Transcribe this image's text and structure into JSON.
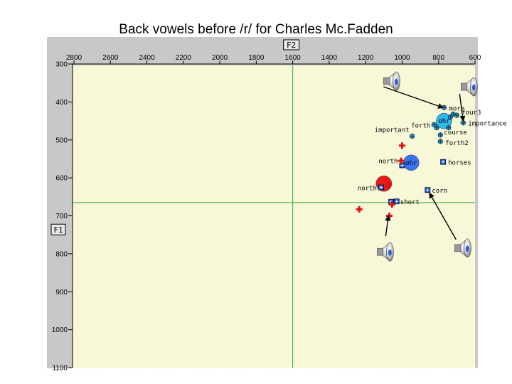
{
  "slide_title": "Back vowels before /r/ for Charles Mc.Fadden",
  "colors": {
    "panel_bg": "#c8c8c8",
    "plot_bg": "#f8f8d8",
    "gridline": "#33aa33",
    "blue_marker": "#1a4fd6",
    "cyan_marker": "#29b6e6",
    "red_marker": "#dd1111",
    "red_circle": "#e81a1a",
    "blue_circle": "#3a73f0",
    "cyan_circle": "#2bb8ea"
  },
  "chart_data": {
    "type": "scatter",
    "title": "Back vowels before /r/ for Charles Mc.Fadden",
    "xlabel": "F2",
    "ylabel": "F1",
    "x_reversed": true,
    "y_reversed": true,
    "xlim": [
      2800,
      600
    ],
    "ylim": [
      300,
      1100
    ],
    "x_ticks": [
      "2800",
      "2600",
      "2400",
      "2200",
      "2000",
      "1800",
      "1600",
      "1400",
      "1200",
      "1000",
      "800",
      "600"
    ],
    "y_ticks": [
      "300",
      "400",
      "500",
      "600",
      "700",
      "800",
      "900",
      "1000",
      "1100"
    ],
    "x_tick_values": [
      2800,
      2600,
      2400,
      2200,
      2000,
      1800,
      1600,
      1400,
      1200,
      1000,
      800,
      600
    ],
    "y_tick_values": [
      300,
      400,
      500,
      600,
      700,
      800,
      900,
      1000,
      1100
    ],
    "reference_lines": {
      "x": 1600,
      "y": 665
    },
    "labeled_points": [
      {
        "label": "more",
        "x": 770,
        "y": 415,
        "marker": "circle-plus",
        "series": "blue"
      },
      {
        "label": "four3",
        "x": 700,
        "y": 435,
        "marker": "circle-plus",
        "series": "blue"
      },
      {
        "label": "importance",
        "x": 665,
        "y": 455,
        "marker": "circle-plus",
        "series": "blue"
      },
      {
        "label": "forth",
        "x": 825,
        "y": 460,
        "marker": "circle-plus",
        "series": "blue"
      },
      {
        "label": "important",
        "x": 945,
        "y": 490,
        "marker": "circle-plus",
        "series": "blue"
      },
      {
        "label": "course",
        "x": 790,
        "y": 487,
        "marker": "circle-plus",
        "series": "blue"
      },
      {
        "label": "forth2",
        "x": 790,
        "y": 504,
        "marker": "circle-plus",
        "series": "blue"
      },
      {
        "label": "horses",
        "x": 775,
        "y": 558,
        "marker": "square-plus",
        "series": "blue"
      },
      {
        "label": "north",
        "x": 1000,
        "y": 567,
        "marker": "square-plus",
        "series": "blue"
      },
      {
        "label": "north",
        "x": 1115,
        "y": 625,
        "marker": "square-plus",
        "series": "blue"
      },
      {
        "label": "corn",
        "x": 860,
        "y": 632,
        "marker": "square-plus",
        "series": "blue"
      },
      {
        "label": "short",
        "x": 1030,
        "y": 662,
        "marker": "square-plus",
        "series": "blue"
      }
    ],
    "unlabeled_points": [
      {
        "x": 735,
        "y": 440,
        "marker": "circle-plus"
      },
      {
        "x": 720,
        "y": 432,
        "marker": "circle-plus"
      },
      {
        "x": 810,
        "y": 468,
        "marker": "circle-plus"
      },
      {
        "x": 745,
        "y": 468,
        "marker": "circle-plus"
      },
      {
        "x": 1060,
        "y": 663,
        "marker": "square-plus"
      }
    ],
    "red_points": [
      {
        "x": 1000,
        "y": 515
      },
      {
        "x": 1005,
        "y": 555
      },
      {
        "x": 1075,
        "y": 620
      },
      {
        "x": 1055,
        "y": 670
      },
      {
        "x": 1235,
        "y": 683
      },
      {
        "x": 1070,
        "y": 700
      }
    ],
    "means": [
      {
        "label": "ohr",
        "x": 770,
        "y": 450,
        "color": "cyan"
      },
      {
        "label": "ohr",
        "x": 950,
        "y": 560,
        "color": "blue"
      },
      {
        "label": "",
        "x": 1100,
        "y": 615,
        "color": "red"
      }
    ],
    "speaker_icons": [
      {
        "x": 1055,
        "y": 345,
        "arrow_to": [
          775,
          415
        ]
      },
      {
        "x": 630,
        "y": 360,
        "arrow_to": [
          665,
          450
        ]
      },
      {
        "x": 1090,
        "y": 795,
        "arrow_to": [
          1075,
          700
        ]
      },
      {
        "x": 665,
        "y": 785,
        "arrow_to": [
          850,
          640
        ]
      }
    ]
  }
}
